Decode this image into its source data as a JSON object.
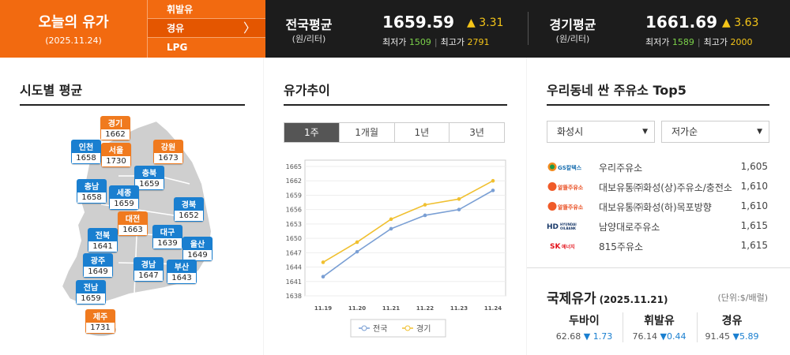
{
  "header": {
    "today_title": "오늘의 유가",
    "today_date": "(2025.11.24)",
    "fuel_menu": [
      "휘발유",
      "경유",
      "LPG"
    ],
    "selected_fuel": "경유",
    "national": {
      "label": "전국평균",
      "unit": "(원/리터)",
      "price": "1659.59",
      "change": "▲ 3.31",
      "min_label": "최저가",
      "min": "1509",
      "max_label": "최고가",
      "max": "2791"
    },
    "gyeonggi": {
      "label": "경기평균",
      "unit": "(원/리터)",
      "price": "1661.69",
      "change": "▲ 3.63",
      "min_label": "최저가",
      "min": "1589",
      "max_label": "최고가",
      "max": "2000"
    }
  },
  "regions": {
    "title": "시도별 평균",
    "items": [
      {
        "name": "경기",
        "value": "1662",
        "color": "orange"
      },
      {
        "name": "인천",
        "value": "1658",
        "color": "blue"
      },
      {
        "name": "서울",
        "value": "1730",
        "color": "orange"
      },
      {
        "name": "강원",
        "value": "1673",
        "color": "orange"
      },
      {
        "name": "충북",
        "value": "1659",
        "color": "blue"
      },
      {
        "name": "충남",
        "value": "1658",
        "color": "blue"
      },
      {
        "name": "세종",
        "value": "1659",
        "color": "blue"
      },
      {
        "name": "경북",
        "value": "1652",
        "color": "blue"
      },
      {
        "name": "대전",
        "value": "1663",
        "color": "orange"
      },
      {
        "name": "전북",
        "value": "1641",
        "color": "blue"
      },
      {
        "name": "대구",
        "value": "1639",
        "color": "blue"
      },
      {
        "name": "울산",
        "value": "1649",
        "color": "blue"
      },
      {
        "name": "광주",
        "value": "1649",
        "color": "blue"
      },
      {
        "name": "경남",
        "value": "1647",
        "color": "blue"
      },
      {
        "name": "부산",
        "value": "1643",
        "color": "blue"
      },
      {
        "name": "전남",
        "value": "1659",
        "color": "blue"
      },
      {
        "name": "제주",
        "value": "1731",
        "color": "orange"
      }
    ]
  },
  "trend": {
    "title": "유가추이",
    "tabs": [
      "1주",
      "1개월",
      "1년",
      "3년"
    ],
    "active_tab": "1주"
  },
  "chart_data": {
    "type": "line",
    "x": [
      "11.19",
      "11.20",
      "11.21",
      "11.22",
      "11.23",
      "11.24"
    ],
    "series": [
      {
        "name": "전국",
        "color": "#7a9fd4",
        "values": [
          1642,
          1647.2,
          1652,
          1654.8,
          1656,
          1660
        ]
      },
      {
        "name": "경기",
        "color": "#f0c030",
        "values": [
          1645,
          1649.2,
          1654,
          1657,
          1658.2,
          1662
        ]
      }
    ],
    "ylim": [
      1638,
      1665
    ],
    "yticks": [
      1638,
      1641,
      1644,
      1647,
      1650,
      1653,
      1656,
      1659,
      1662,
      1665
    ],
    "legend": "bottom",
    "grid": true
  },
  "stations": {
    "title": "우리동네 싼 주유소 Top5",
    "city": "화성시",
    "sort": "저가순",
    "items": [
      {
        "brand": "GS칼텍스",
        "name": "우리주유소",
        "price": "1,605"
      },
      {
        "brand": "알뜰주유소",
        "name": "대보유통㈜화성(상)주유소/충전소",
        "price": "1,610"
      },
      {
        "brand": "알뜰주유소",
        "name": "대보유통㈜화성(하)목포방향",
        "price": "1,610"
      },
      {
        "brand": "HD HYUNDAI OILBANK",
        "name": "남양대로주유소",
        "price": "1,615"
      },
      {
        "brand": "SK에너지",
        "name": "815주유소",
        "price": "1,615"
      }
    ]
  },
  "intl": {
    "title": "국제유가",
    "date": "(2025.11.21)",
    "unit": "(단위:$/배럴)",
    "items": [
      {
        "name": "두바이",
        "value": "62.68",
        "change": "▼ 1.73"
      },
      {
        "name": "휘발유",
        "value": "76.14",
        "change": "▼0.44"
      },
      {
        "name": "경유",
        "value": "91.45",
        "change": "▼5.89"
      }
    ]
  }
}
